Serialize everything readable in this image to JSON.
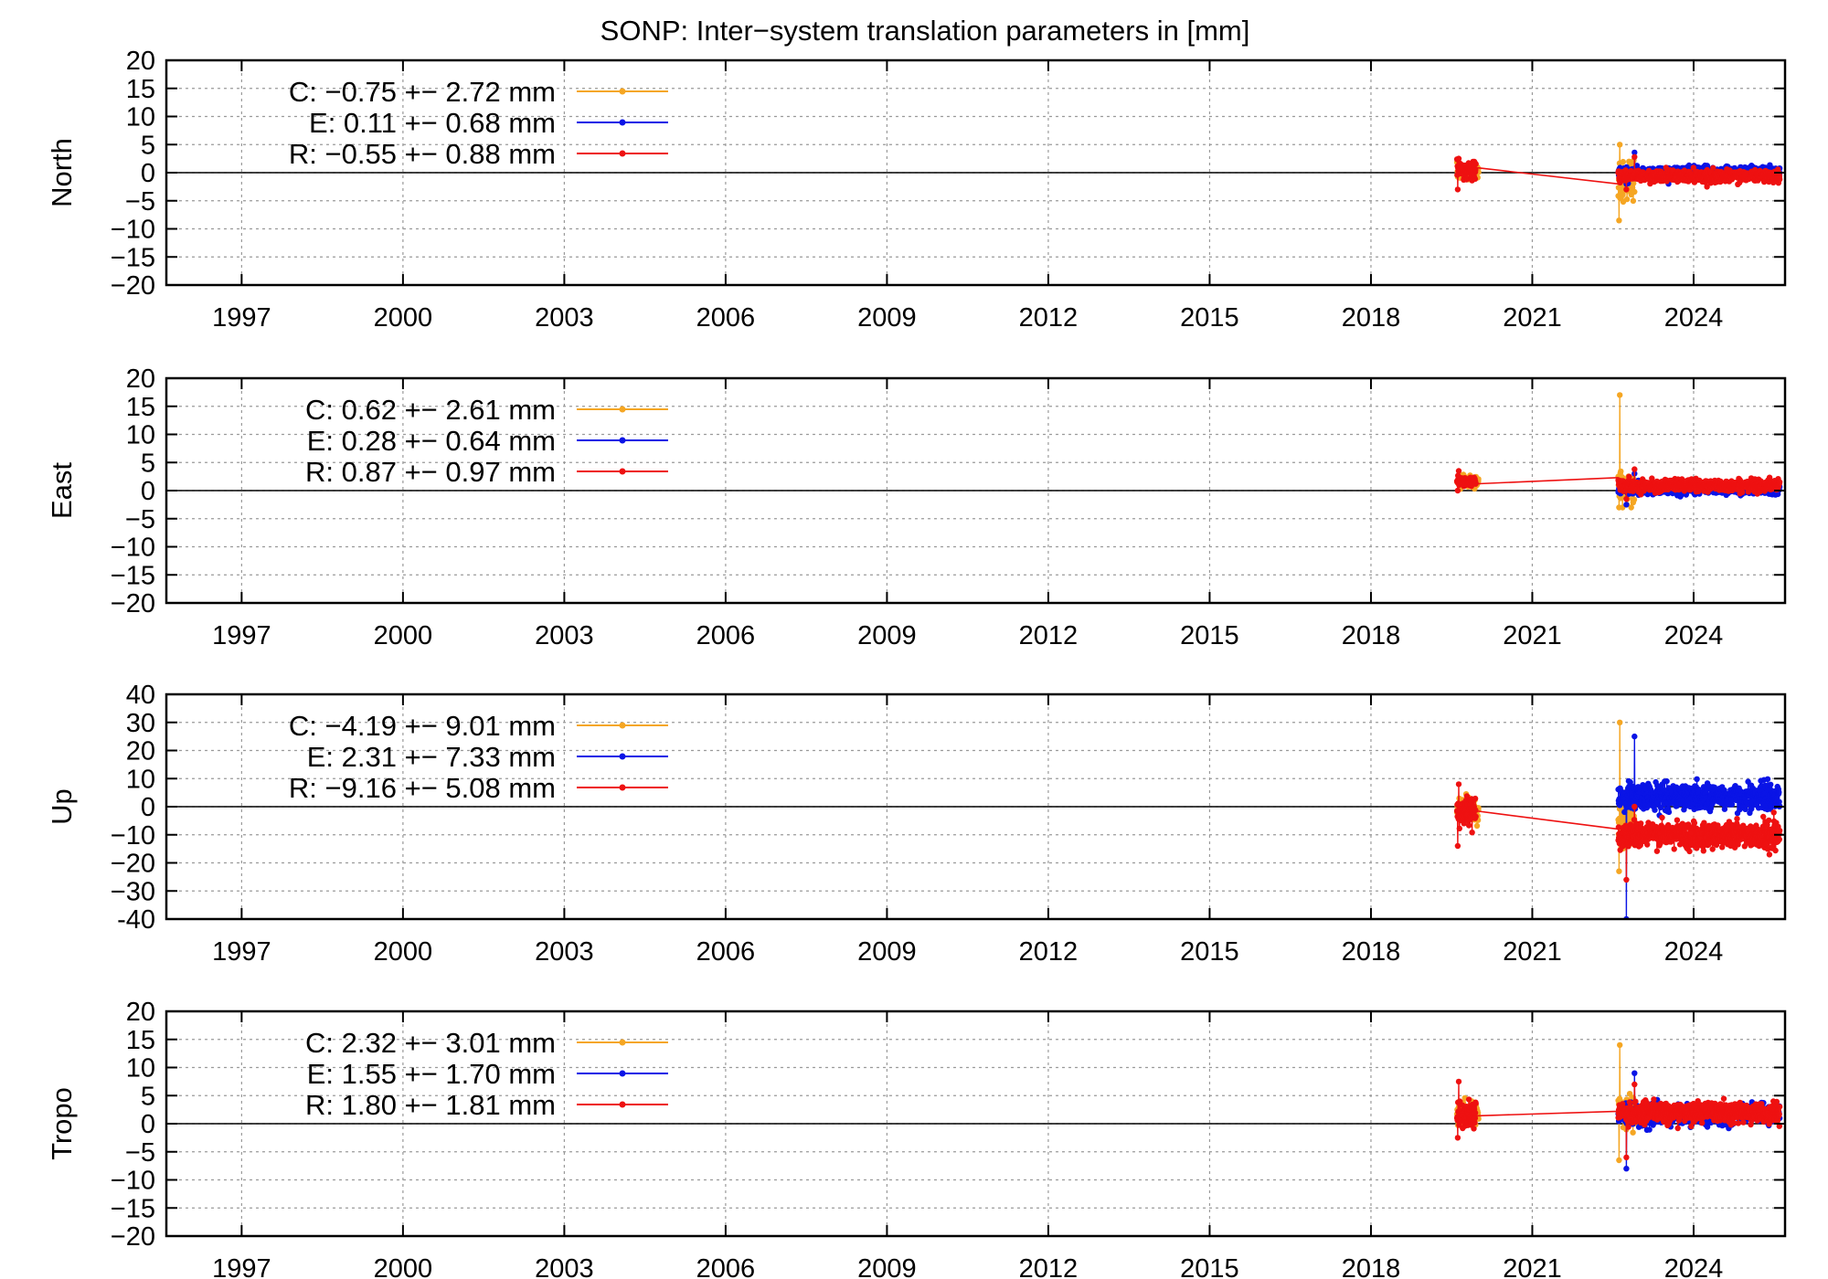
{
  "chart_data": {
    "type": "line",
    "title": "SONP: Inter−system translation parameters in [mm]",
    "colors": {
      "C": "#f5a623",
      "E": "#0a14e6",
      "R": "#ee1111"
    },
    "xlim": [
      1995.6,
      2025.7
    ],
    "xticks": [
      1997,
      2000,
      2003,
      2006,
      2009,
      2012,
      2015,
      2018,
      2021,
      2024
    ],
    "xtick_labels": [
      "1997",
      "2000",
      "2003",
      "2006",
      "2009",
      "2012",
      "2015",
      "2018",
      "2021",
      "2024"
    ],
    "panels": [
      {
        "ylabel": "North",
        "ylim": [
          -20,
          20
        ],
        "yticks": [
          -20,
          -15,
          -10,
          -5,
          0,
          5,
          10,
          15,
          20
        ],
        "ytick_labels": [
          "−20",
          "−15",
          "−10",
          "−5",
          "0",
          "5",
          "10",
          "15",
          "20"
        ],
        "legend": [
          {
            "key": "C",
            "text": "C:  −0.75 +− 2.72 mm"
          },
          {
            "key": "E",
            "text": "E:   0.11 +− 0.68 mm"
          },
          {
            "key": "R",
            "text": "R:  −0.55 +− 0.88 mm"
          }
        ],
        "series": [
          {
            "name": "C",
            "segments": [
              {
                "x0": 2019.6,
                "x1": 2020.0,
                "center": 0.0,
                "spread": 1.2
              },
              {
                "x0": 2022.6,
                "x1": 2022.9,
                "center": -1.0,
                "spread": 4.0,
                "min": -8.5,
                "max": 5.0
              }
            ]
          },
          {
            "name": "E",
            "segments": [
              {
                "x0": 2022.6,
                "x1": 2025.6,
                "center": 0.1,
                "spread": 0.9,
                "min": -2.0,
                "max": 3.6
              }
            ]
          },
          {
            "name": "R",
            "segments": [
              {
                "x0": 2019.6,
                "x1": 2019.95,
                "center": 0.4,
                "spread": 1.3,
                "min": -3.0,
                "max": 2.5
              },
              {
                "x0": 2022.6,
                "x1": 2025.6,
                "center": -0.6,
                "spread": 0.9,
                "min": -3.0,
                "max": 2.8
              }
            ],
            "link": [
              [
                2019.95,
                0.9
              ],
              [
                2022.6,
                -2.0
              ]
            ]
          }
        ]
      },
      {
        "ylabel": "East",
        "ylim": [
          -20,
          20
        ],
        "yticks": [
          -20,
          -15,
          -10,
          -5,
          0,
          5,
          10,
          15,
          20
        ],
        "ytick_labels": [
          "−20",
          "−15",
          "−10",
          "−5",
          "0",
          "5",
          "10",
          "15",
          "20"
        ],
        "legend": [
          {
            "key": "C",
            "text": "C:   0.62 +− 2.61 mm"
          },
          {
            "key": "E",
            "text": "E:   0.28 +− 0.64 mm"
          },
          {
            "key": "R",
            "text": "R:   0.87 +− 0.97 mm"
          }
        ],
        "series": [
          {
            "name": "C",
            "segments": [
              {
                "x0": 2019.6,
                "x1": 2020.0,
                "center": 1.5,
                "spread": 1.0
              },
              {
                "x0": 2022.6,
                "x1": 2022.9,
                "center": 0.5,
                "spread": 3.0,
                "min": -3.0,
                "max": 17.0
              }
            ]
          },
          {
            "name": "E",
            "segments": [
              {
                "x0": 2022.6,
                "x1": 2025.6,
                "center": 0.3,
                "spread": 0.8,
                "min": -2.5,
                "max": 3.0
              }
            ]
          },
          {
            "name": "R",
            "segments": [
              {
                "x0": 2019.6,
                "x1": 2019.95,
                "center": 1.8,
                "spread": 0.8,
                "min": 0.0,
                "max": 3.5
              },
              {
                "x0": 2022.6,
                "x1": 2025.6,
                "center": 0.9,
                "spread": 0.9,
                "min": -1.5,
                "max": 3.8
              }
            ],
            "link": [
              [
                2019.95,
                1.2
              ],
              [
                2022.6,
                2.3
              ]
            ]
          }
        ]
      },
      {
        "ylabel": "Up",
        "ylim": [
          -40,
          40
        ],
        "yticks": [
          -40,
          -30,
          -20,
          -10,
          0,
          10,
          20,
          30,
          40
        ],
        "ytick_labels": [
          "-40",
          "−30",
          "−20",
          "−10",
          "0",
          "10",
          "20",
          "30",
          "40"
        ],
        "legend": [
          {
            "key": "C",
            "text": "C:  −4.19 +− 9.01 mm"
          },
          {
            "key": "E",
            "text": "E:   2.31 +− 7.33 mm"
          },
          {
            "key": "R",
            "text": "R:  −9.16 +− 5.08 mm"
          }
        ],
        "series": [
          {
            "name": "C",
            "segments": [
              {
                "x0": 2019.6,
                "x1": 2020.0,
                "center": -1.0,
                "spread": 4.0
              },
              {
                "x0": 2022.6,
                "x1": 2022.9,
                "center": -4.0,
                "spread": 9.0,
                "min": -23.0,
                "max": 30.0
              }
            ]
          },
          {
            "name": "E",
            "segments": [
              {
                "x0": 2022.6,
                "x1": 2025.6,
                "center": 3.5,
                "spread": 4.0,
                "min": -40.0,
                "max": 25.0
              }
            ]
          },
          {
            "name": "R",
            "segments": [
              {
                "x0": 2019.6,
                "x1": 2019.95,
                "center": -2.0,
                "spread": 4.5,
                "min": -14.0,
                "max": 8.0
              },
              {
                "x0": 2022.6,
                "x1": 2025.6,
                "center": -10.0,
                "spread": 4.0,
                "min": -26.0,
                "max": 0.0
              }
            ],
            "link": [
              [
                2019.95,
                -1.5
              ],
              [
                2022.6,
                -8.0
              ]
            ]
          }
        ]
      },
      {
        "ylabel": "Tropo",
        "ylim": [
          -20,
          20
        ],
        "yticks": [
          -20,
          -15,
          -10,
          -5,
          0,
          5,
          10,
          15,
          20
        ],
        "ytick_labels": [
          "−20",
          "−15",
          "−10",
          "−5",
          "0",
          "5",
          "10",
          "15",
          "20"
        ],
        "legend": [
          {
            "key": "C",
            "text": "C:   2.32 +− 3.01 mm"
          },
          {
            "key": "E",
            "text": "E:   1.55 +− 1.70 mm"
          },
          {
            "key": "R",
            "text": "R:   1.80 +− 1.81 mm"
          }
        ],
        "series": [
          {
            "name": "C",
            "segments": [
              {
                "x0": 2019.6,
                "x1": 2020.0,
                "center": 1.5,
                "spread": 2.0
              },
              {
                "x0": 2022.6,
                "x1": 2022.9,
                "center": 2.0,
                "spread": 3.0,
                "min": -6.5,
                "max": 14.0
              }
            ]
          },
          {
            "name": "E",
            "segments": [
              {
                "x0": 2022.6,
                "x1": 2025.6,
                "center": 1.6,
                "spread": 1.6,
                "min": -8.0,
                "max": 9.0
              }
            ]
          },
          {
            "name": "R",
            "segments": [
              {
                "x0": 2019.6,
                "x1": 2019.95,
                "center": 1.5,
                "spread": 2.0,
                "min": -2.5,
                "max": 7.5
              },
              {
                "x0": 2022.6,
                "x1": 2025.6,
                "center": 2.0,
                "spread": 1.5,
                "min": -6.0,
                "max": 7.0
              }
            ],
            "link": [
              [
                2019.95,
                1.4
              ],
              [
                2022.6,
                2.2
              ]
            ]
          }
        ]
      }
    ]
  }
}
